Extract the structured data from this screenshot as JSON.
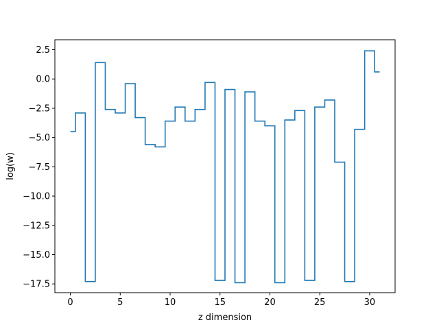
{
  "chart_data": {
    "type": "line",
    "drawstyle": "steps-mid",
    "title": "",
    "xlabel": "z dimension",
    "ylabel": "log(w)",
    "xlim": [
      -1.55,
      32.55
    ],
    "ylim": [
      -18.25,
      3.35
    ],
    "x_ticks": [
      0,
      5,
      10,
      15,
      20,
      25,
      30
    ],
    "y_ticks": [
      2.5,
      0.0,
      -2.5,
      -5.0,
      -7.5,
      -10.0,
      -12.5,
      -15.0,
      -17.5
    ],
    "y_tick_labels": [
      "2.5",
      "0.0",
      "−2.5",
      "−5.0",
      "−7.5",
      "−10.0",
      "−12.5",
      "−15.0",
      "−17.5"
    ],
    "grid": false,
    "legend": "none",
    "series": [
      {
        "color": "#1f77b4",
        "x": [
          0,
          1,
          2,
          3,
          4,
          5,
          6,
          7,
          8,
          9,
          10,
          11,
          12,
          13,
          14,
          15,
          16,
          17,
          18,
          19,
          20,
          21,
          22,
          23,
          24,
          25,
          26,
          27,
          28,
          29,
          30,
          31
        ],
        "values": [
          -4.5,
          -2.9,
          -17.3,
          1.4,
          -2.6,
          -2.9,
          -0.4,
          -3.3,
          -5.6,
          -5.8,
          -3.6,
          -2.4,
          -3.6,
          -2.6,
          -0.3,
          -17.2,
          -0.9,
          -17.4,
          -1.1,
          -3.6,
          -4.0,
          -17.4,
          -3.5,
          -2.7,
          -17.2,
          -2.4,
          -1.8,
          -7.1,
          -17.3,
          -4.3,
          2.4,
          0.6
        ]
      }
    ]
  }
}
